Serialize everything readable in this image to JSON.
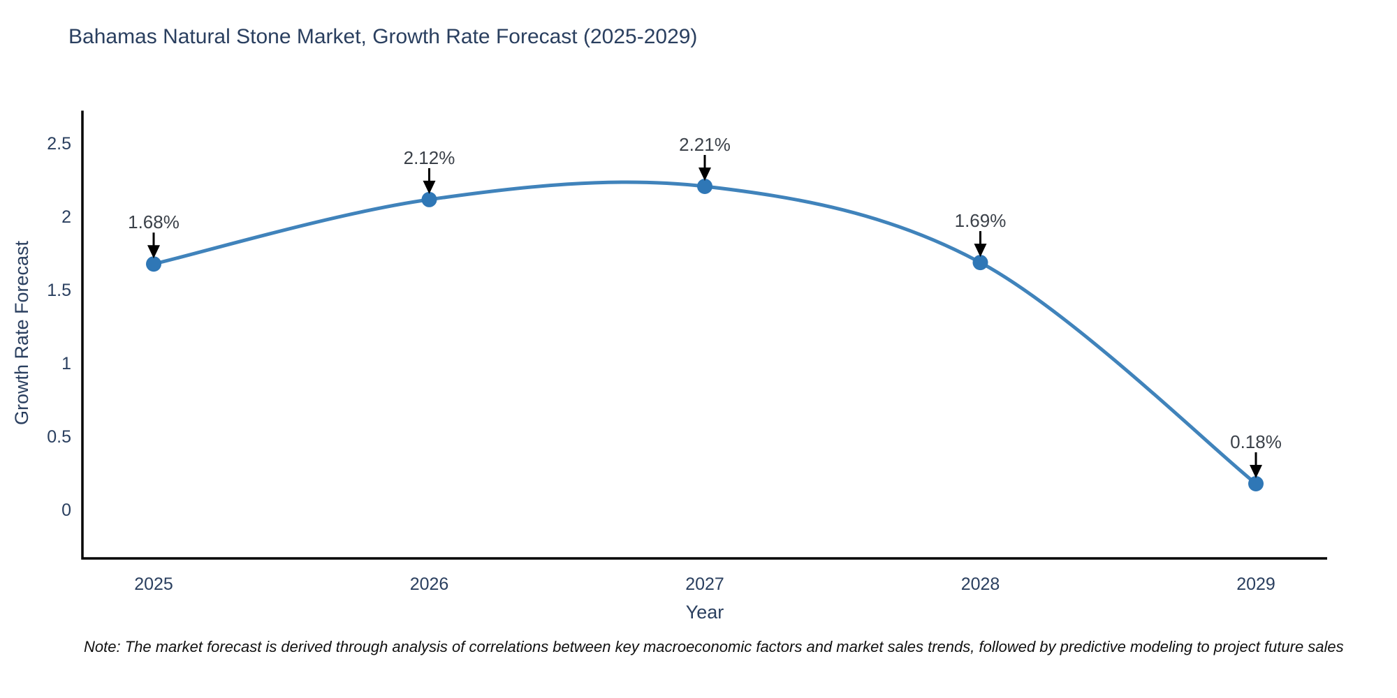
{
  "chart_data": {
    "type": "line",
    "title": "Bahamas Natural Stone Market, Growth Rate Forecast (2025-2029)",
    "xlabel": "Year",
    "ylabel": "Growth Rate Forecast",
    "categories": [
      "2025",
      "2026",
      "2027",
      "2028",
      "2029"
    ],
    "series": [
      {
        "name": "Growth Rate Forecast",
        "values": [
          1.68,
          2.12,
          2.21,
          1.69,
          0.18
        ]
      }
    ],
    "point_labels": [
      "1.68%",
      "2.12%",
      "2.21%",
      "1.69%",
      "0.18%"
    ],
    "yticks": [
      0,
      0.5,
      1,
      1.5,
      2,
      2.5
    ],
    "ytick_labels": [
      "0",
      "0.5",
      "1",
      "1.5",
      "2",
      "2.5"
    ],
    "ylim": [
      -0.33,
      2.72
    ],
    "grid": false,
    "legend_position": "none",
    "line_shape": "spline",
    "colors": {
      "line": "#4083bb",
      "marker": "#2f77b6",
      "axis": "#000000",
      "text": "#2a3f5f",
      "annotation_text": "#3b4149",
      "arrow": "#000000",
      "background": "#ffffff"
    }
  },
  "note": "Note: The market forecast is derived through analysis of correlations between key macroeconomic factors and market sales trends, followed by predictive modeling to project future sales"
}
